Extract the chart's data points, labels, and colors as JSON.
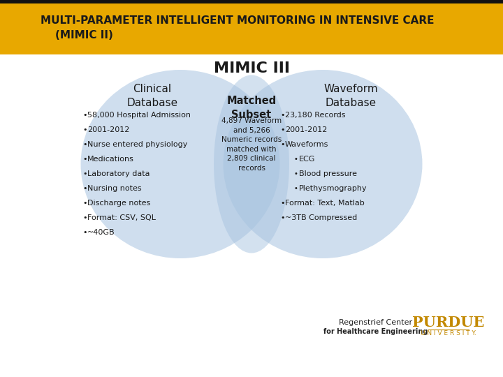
{
  "title_banner": "MULTI-PARAMETER INTELLIGENT MONITORING IN INTENSIVE CARE\n    (MIMIC II)",
  "banner_bg": "#E8A800",
  "banner_text_color": "#1a1a1a",
  "main_bg": "#ffffff",
  "venn_color": "#a8c4e0",
  "subtitle": "MIMIC III",
  "left_title": "Clinical\nDatabase",
  "right_title": "Waveform\nDatabase",
  "center_title": "Matched\nSubset",
  "center_text": "4,897 Waveform\nand 5,266\nNumeric records\nmatched with\n2,809 clinical\nrecords",
  "left_bullets": [
    "58,000 Hospital Admission",
    "2001-2012",
    "Nurse entered physiology",
    "Medications",
    "Laboratory data",
    "Nursing notes",
    "Discharge notes",
    "Format: CSV, SQL",
    "~40GB"
  ],
  "right_bullets_main": [
    "23,180 Records",
    "2001-2012",
    "Waveforms"
  ],
  "right_bullets_sub": [
    "ECG",
    "Blood pressure",
    "Plethysmography"
  ],
  "right_bullets_end": [
    "Format: Text, Matlab",
    "~3TB Compressed"
  ],
  "regenstrief_line1": "Regenstrief Center",
  "regenstrief_line2": "for Healthcare Engineering",
  "purdue_color": "#C28800",
  "text_color": "#1a1a1a"
}
